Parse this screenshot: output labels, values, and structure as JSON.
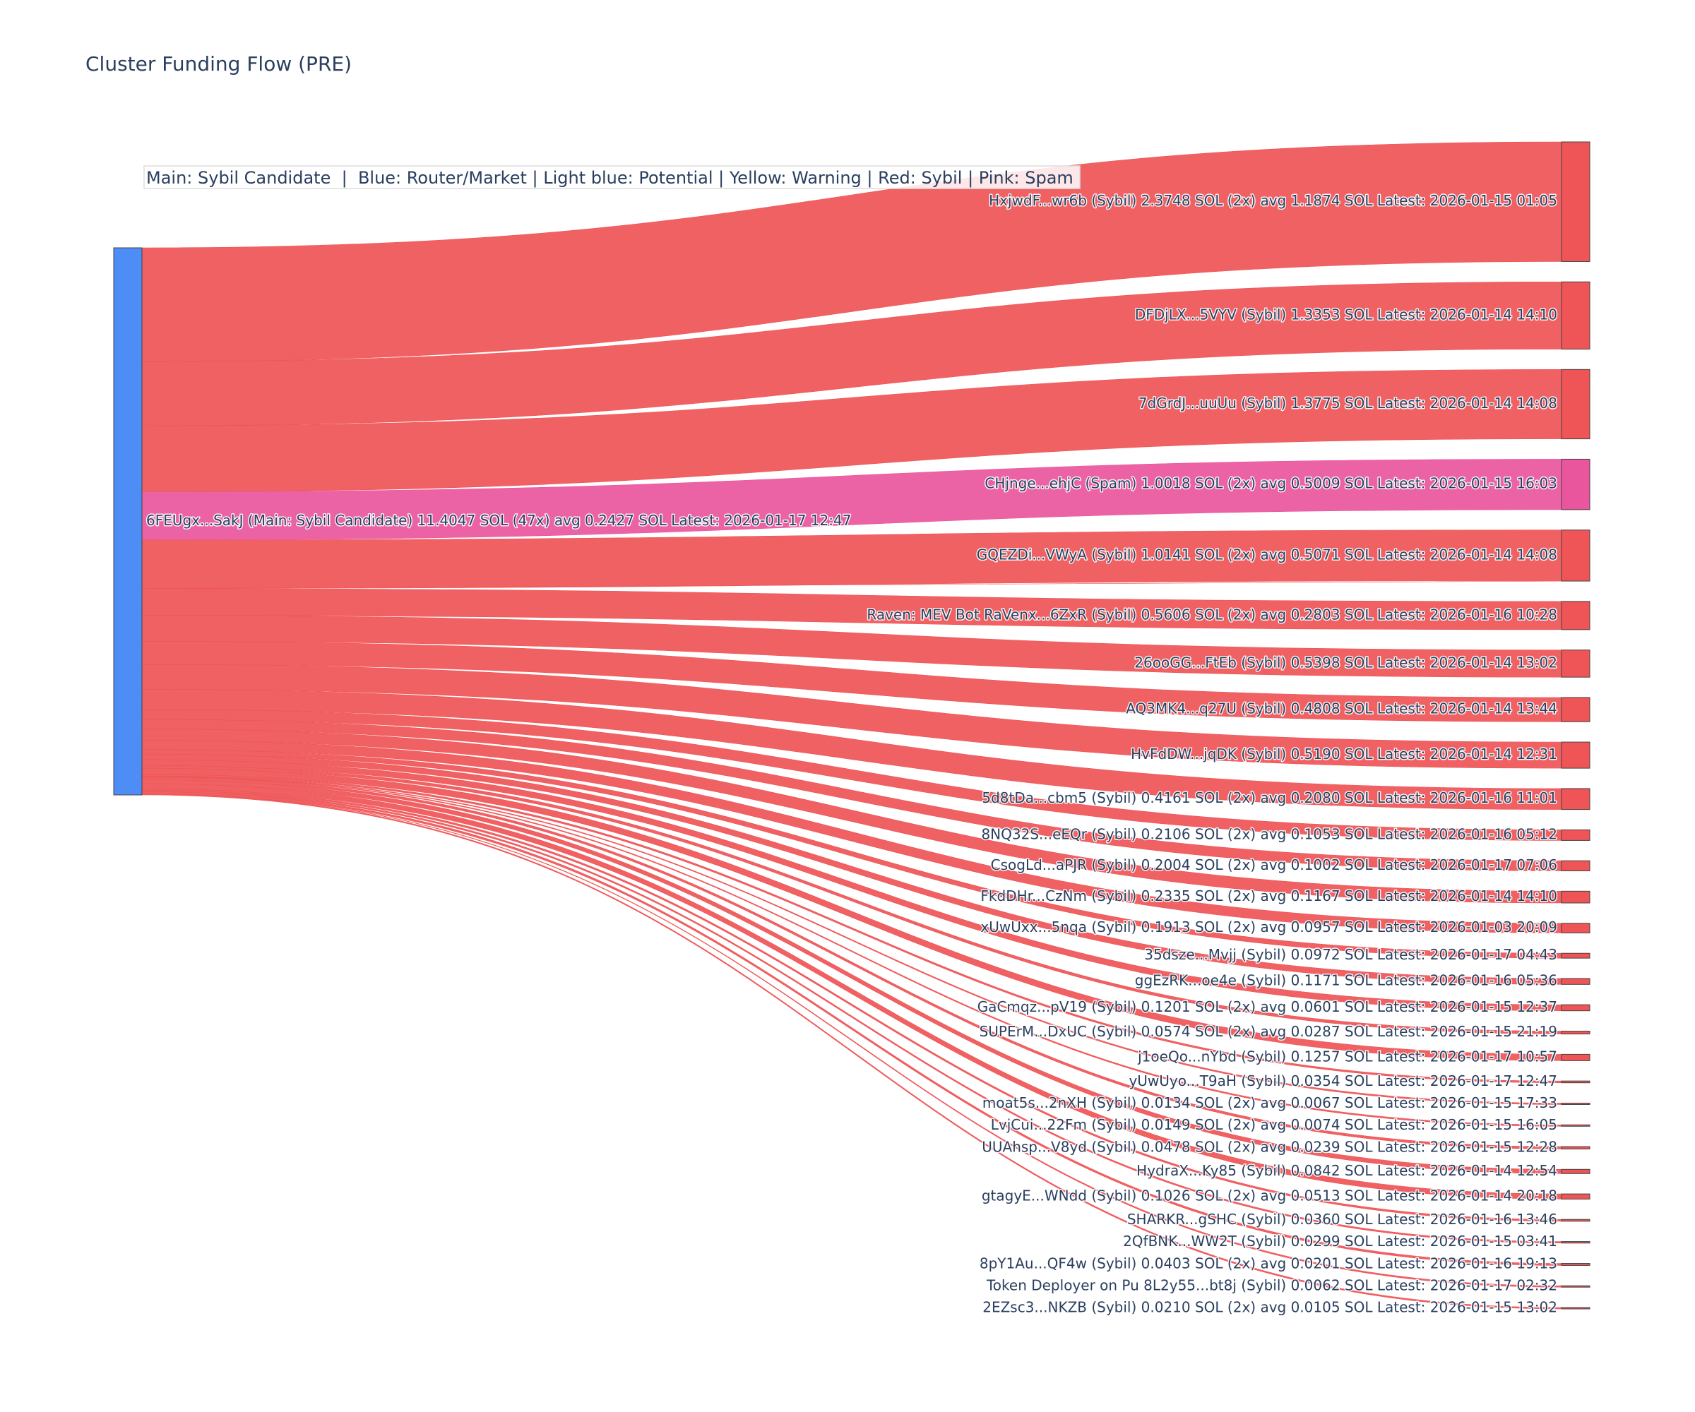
{
  "chart_data": {
    "type": "sankey",
    "title": "Cluster Funding Flow (PRE)",
    "legend_note": "Main: Sybil Candidate  |  Blue: Router/Market | Light blue: Potential | Yellow: Warning | Red: Sybil | Pink: Spam",
    "colors": {
      "main": "#4e8cf6",
      "sybil": "#ef5456",
      "spam": "#ea569d",
      "node_border": "#444444",
      "title": "#2a3f5f",
      "label": "#2a3f5f"
    },
    "source": {
      "label": "6FEUgx...SakJ (Main: Sybil Candidate) 11.4047 SOL (47x) avg 0.2427 SOL Latest: 2026-01-17 12:47",
      "category": "main",
      "value": 11.4047
    },
    "targets": [
      {
        "label": "HxjwdF...wr6b (Sybil) 2.3748 SOL (2x) avg 1.1874 SOL Latest: 2026-01-15 01:05",
        "category": "sybil",
        "value": 2.3748
      },
      {
        "label": "DFDjLX...5VYV (Sybil) 1.3353 SOL Latest: 2026-01-14 14:10",
        "category": "sybil",
        "value": 1.3353
      },
      {
        "label": "7dGrdJ...uuUu (Sybil) 1.3775 SOL Latest: 2026-01-14 14:08",
        "category": "sybil",
        "value": 1.3775
      },
      {
        "label": "CHjnge...ehjC (Spam) 1.0018 SOL (2x) avg 0.5009 SOL Latest: 2026-01-15 16:03",
        "category": "spam",
        "value": 1.0018
      },
      {
        "label": "GQEZDi...VWyA (Sybil) 1.0141 SOL (2x) avg 0.5071 SOL Latest: 2026-01-14 14:08",
        "category": "sybil",
        "value": 1.0141
      },
      {
        "label": "Raven: MEV Bot RaVenx...6ZxR (Sybil) 0.5606 SOL (2x) avg 0.2803 SOL Latest: 2026-01-16 10:28",
        "category": "sybil",
        "value": 0.5606
      },
      {
        "label": "26ooGG...FtEb (Sybil) 0.5398 SOL Latest: 2026-01-14 13:02",
        "category": "sybil",
        "value": 0.5398
      },
      {
        "label": "AQ3MK4...q27U (Sybil) 0.4808 SOL Latest: 2026-01-14 13:44",
        "category": "sybil",
        "value": 0.4808
      },
      {
        "label": "HvFdDW...jqDK (Sybil) 0.5190 SOL Latest: 2026-01-14 12:31",
        "category": "sybil",
        "value": 0.519
      },
      {
        "label": "5d8tDa...cbm5 (Sybil) 0.4161 SOL (2x) avg 0.2080 SOL Latest: 2026-01-16 11:01",
        "category": "sybil",
        "value": 0.4161
      },
      {
        "label": "8NQ32S...eEQr (Sybil) 0.2106 SOL (2x) avg 0.1053 SOL Latest: 2026-01-16 05:12",
        "category": "sybil",
        "value": 0.2106
      },
      {
        "label": "CsogLd...aPJR (Sybil) 0.2004 SOL (2x) avg 0.1002 SOL Latest: 2026-01-17 07:06",
        "category": "sybil",
        "value": 0.2004
      },
      {
        "label": "FkdDHr...CzNm (Sybil) 0.2335 SOL (2x) avg 0.1167 SOL Latest: 2026-01-14 14:10",
        "category": "sybil",
        "value": 0.2335
      },
      {
        "label": "xUwUxx...5nqa (Sybil) 0.1913 SOL (2x) avg 0.0957 SOL Latest: 2026-01-03 20:09",
        "category": "sybil",
        "value": 0.1913
      },
      {
        "label": "35dsze...Mvjj (Sybil) 0.0972 SOL Latest: 2026-01-17 04:43",
        "category": "sybil",
        "value": 0.0972
      },
      {
        "label": "ggEzRK...oe4e (Sybil) 0.1171 SOL Latest: 2026-01-16 05:36",
        "category": "sybil",
        "value": 0.1171
      },
      {
        "label": "GaCmqz...pV19 (Sybil) 0.1201 SOL (2x) avg 0.0601 SOL Latest: 2026-01-15 12:37",
        "category": "sybil",
        "value": 0.1201
      },
      {
        "label": "SUPErM...DxUC (Sybil) 0.0574 SOL (2x) avg 0.0287 SOL Latest: 2026-01-15 21:19",
        "category": "sybil",
        "value": 0.0574
      },
      {
        "label": "j1oeQo...nYbd (Sybil) 0.1257 SOL Latest: 2026-01-17 10:57",
        "category": "sybil",
        "value": 0.1257
      },
      {
        "label": "yUwUyo...T9aH (Sybil) 0.0354 SOL Latest: 2026-01-17 12:47",
        "category": "sybil",
        "value": 0.0354
      },
      {
        "label": "moat5s...2nXH (Sybil) 0.0134 SOL (2x) avg 0.0067 SOL Latest: 2026-01-15 17:33",
        "category": "sybil",
        "value": 0.0134
      },
      {
        "label": "LvjCui...22Fm (Sybil) 0.0149 SOL (2x) avg 0.0074 SOL Latest: 2026-01-15 16:05",
        "category": "sybil",
        "value": 0.0149
      },
      {
        "label": "UUAhsp...V8yd (Sybil) 0.0478 SOL (2x) avg 0.0239 SOL Latest: 2026-01-15 12:28",
        "category": "sybil",
        "value": 0.0478
      },
      {
        "label": "HydraX...Ky85 (Sybil) 0.0842 SOL Latest: 2026-01-14 12:54",
        "category": "sybil",
        "value": 0.0842
      },
      {
        "label": "gtagyE...WNdd (Sybil) 0.1026 SOL (2x) avg 0.0513 SOL Latest: 2026-01-14 20:18",
        "category": "sybil",
        "value": 0.1026
      },
      {
        "label": "SHARKR...gSHC (Sybil) 0.0360 SOL Latest: 2026-01-16 13:46",
        "category": "sybil",
        "value": 0.036
      },
      {
        "label": "2QfBNK...WW2T (Sybil) 0.0299 SOL Latest: 2026-01-15 03:41",
        "category": "sybil",
        "value": 0.0299
      },
      {
        "label": "8pY1Au...QF4w (Sybil) 0.0403 SOL (2x) avg 0.0201 SOL Latest: 2026-01-16 19:13",
        "category": "sybil",
        "value": 0.0403
      },
      {
        "label": "Token Deployer on Pu 8L2y55...bt8j (Sybil) 0.0062 SOL Latest: 2026-01-17 02:32",
        "category": "sybil",
        "value": 0.0062
      },
      {
        "label": "2EZsc3...NKZB (Sybil) 0.0210 SOL (2x) avg 0.0105 SOL Latest: 2026-01-15 13:02",
        "category": "sybil",
        "value": 0.021
      }
    ]
  }
}
